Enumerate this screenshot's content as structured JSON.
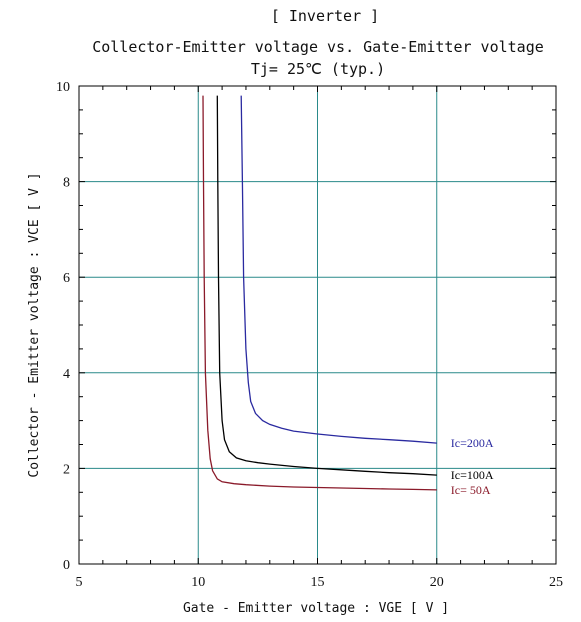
{
  "chart_data": {
    "type": "line",
    "title": "[ Inverter ]",
    "subtitle1": "Collector-Emitter voltage  vs. Gate-Emitter voltage",
    "subtitle2": "Tj= 25℃    (typ.)",
    "xlabel": "Gate - Emitter voltage  :  VGE  [ V ]",
    "ylabel": "Collector - Emitter voltage  :  VCE  [ V ]",
    "xlim": [
      5,
      25
    ],
    "ylim": [
      0,
      10
    ],
    "xticks": [
      5,
      10,
      15,
      20,
      25
    ],
    "yticks": [
      0,
      2,
      4,
      6,
      8,
      10
    ],
    "grid": true,
    "grid_color": "#2a8a8a",
    "series": [
      {
        "name": "Ic=200A",
        "color": "#2a2aa0",
        "x": [
          11.8,
          11.85,
          11.9,
          12.0,
          12.1,
          12.2,
          12.4,
          12.7,
          13.0,
          13.5,
          14.0,
          15.0,
          16.0,
          17.0,
          18.0,
          19.0,
          20.0
        ],
        "y": [
          9.8,
          8.0,
          6.0,
          4.5,
          3.8,
          3.4,
          3.15,
          3.0,
          2.92,
          2.84,
          2.78,
          2.72,
          2.67,
          2.63,
          2.6,
          2.57,
          2.53
        ]
      },
      {
        "name": "Ic=100A",
        "color": "#000000",
        "x": [
          10.8,
          10.82,
          10.85,
          10.9,
          11.0,
          11.1,
          11.3,
          11.6,
          12.0,
          12.5,
          13.0,
          14.0,
          15.0,
          16.0,
          17.0,
          18.0,
          19.0,
          20.0
        ],
        "y": [
          9.8,
          8.0,
          6.0,
          4.0,
          3.0,
          2.6,
          2.35,
          2.22,
          2.16,
          2.12,
          2.09,
          2.04,
          2.0,
          1.97,
          1.94,
          1.91,
          1.89,
          1.86
        ]
      },
      {
        "name": "Ic= 50A",
        "color": "#8a1a2a",
        "x": [
          10.2,
          10.22,
          10.25,
          10.3,
          10.4,
          10.5,
          10.6,
          10.8,
          11.0,
          11.5,
          12.0,
          13.0,
          14.0,
          15.0,
          16.0,
          17.0,
          18.0,
          19.0,
          20.0
        ],
        "y": [
          9.8,
          8.0,
          6.0,
          4.0,
          2.8,
          2.2,
          1.95,
          1.78,
          1.72,
          1.68,
          1.66,
          1.63,
          1.61,
          1.6,
          1.59,
          1.58,
          1.57,
          1.56,
          1.55
        ]
      }
    ]
  }
}
